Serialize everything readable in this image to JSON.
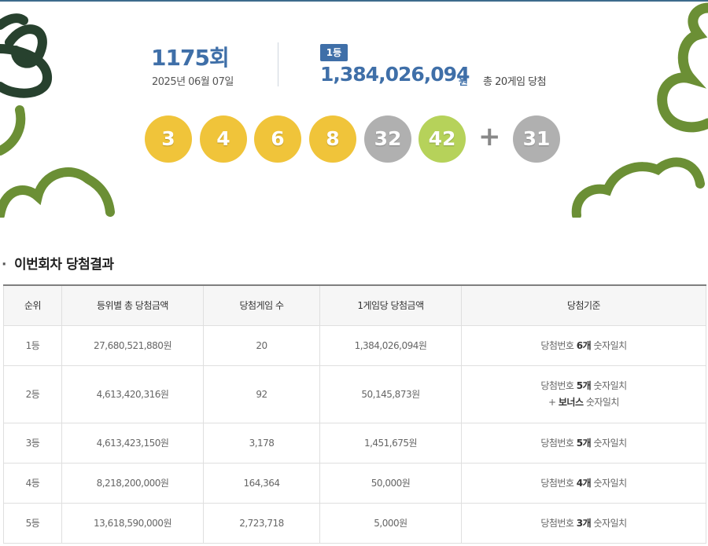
{
  "draw": {
    "round_number": "1175",
    "round_suffix": "회",
    "date": "2025년 06월 07일"
  },
  "first_prize": {
    "badge": "1등",
    "amount": "1,384,026,094",
    "unit": "원",
    "games": "총 20게임 당첨"
  },
  "numbers": {
    "main": [
      "3",
      "4",
      "6",
      "8",
      "32",
      "42"
    ],
    "plus": "+",
    "bonus": "31",
    "colors": {
      "yellow": "#f0c43a",
      "gray": "#b0b0b0",
      "green": "#b6d25a"
    }
  },
  "section": {
    "bullet": "·",
    "title": "이번회차 당첨결과"
  },
  "table": {
    "headers": [
      "순위",
      "등위별 총 당첨금액",
      "당첨게임 수",
      "1게임당 당첨금액",
      "당첨기준"
    ],
    "rows": [
      {
        "rank": "1등",
        "total": "27,680,521,880원",
        "winners": "20",
        "per_game": "1,384,026,094원",
        "crit_a": "당첨번호 ",
        "crit_b": "6개",
        "crit_c": " 숫자일치"
      },
      {
        "rank": "2등",
        "total": "4,613,420,316원",
        "winners": "92",
        "per_game": "50,145,873원",
        "crit_a": "당첨번호 ",
        "crit_b": "5개",
        "crit_c": " 숫자일치",
        "crit_d": "+ ",
        "crit_e": "보너스",
        "crit_f": " 숫자일치"
      },
      {
        "rank": "3등",
        "total": "4,613,423,150원",
        "winners": "3,178",
        "per_game": "1,451,675원",
        "crit_a": "당첨번호 ",
        "crit_b": "5개",
        "crit_c": " 숫자일치"
      },
      {
        "rank": "4등",
        "total": "8,218,200,000원",
        "winners": "164,364",
        "per_game": "50,000원",
        "crit_a": "당첨번호 ",
        "crit_b": "4개",
        "crit_c": " 숫자일치"
      },
      {
        "rank": "5등",
        "total": "13,618,590,000원",
        "winners": "2,723,718",
        "per_game": "5,000원",
        "crit_a": "당첨번호 ",
        "crit_b": "3개",
        "crit_c": " 숫자일치"
      }
    ]
  },
  "theme": {
    "accent": "#3f6fa8",
    "deco_green": "#6b8f35",
    "deco_dark": "#27412e"
  }
}
